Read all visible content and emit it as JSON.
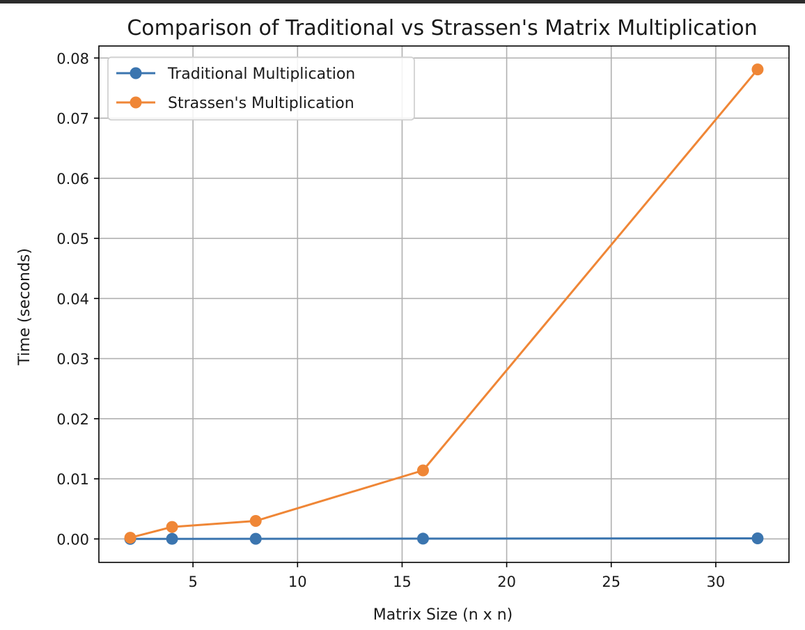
{
  "chart_data": {
    "type": "line",
    "title": "Comparison of Traditional vs Strassen's Matrix Multiplication",
    "xlabel": "Matrix Size (n x n)",
    "ylabel": "Time (seconds)",
    "xlim": [
      0.5,
      33.5
    ],
    "ylim": [
      -0.0039,
      0.082
    ],
    "xticks": [
      5,
      10,
      15,
      20,
      25,
      30
    ],
    "xtick_labels": [
      "5",
      "10",
      "15",
      "20",
      "25",
      "30"
    ],
    "yticks": [
      0,
      0.01,
      0.02,
      0.03,
      0.04,
      0.05,
      0.06,
      0.07,
      0.08
    ],
    "ytick_labels": [
      "0.00",
      "0.01",
      "0.02",
      "0.03",
      "0.04",
      "0.05",
      "0.06",
      "0.07",
      "0.08"
    ],
    "grid": true,
    "legend_position": "top-left",
    "x": [
      2,
      4,
      8,
      16,
      32
    ],
    "series": [
      {
        "name": "Traditional Multiplication",
        "color": "#3b75af",
        "values": [
          1e-05,
          2e-05,
          3e-05,
          5e-05,
          0.0001
        ]
      },
      {
        "name": "Strassen's Multiplication",
        "color": "#ef8636",
        "values": [
          0.0002,
          0.002,
          0.003,
          0.0114,
          0.0781
        ]
      }
    ]
  }
}
